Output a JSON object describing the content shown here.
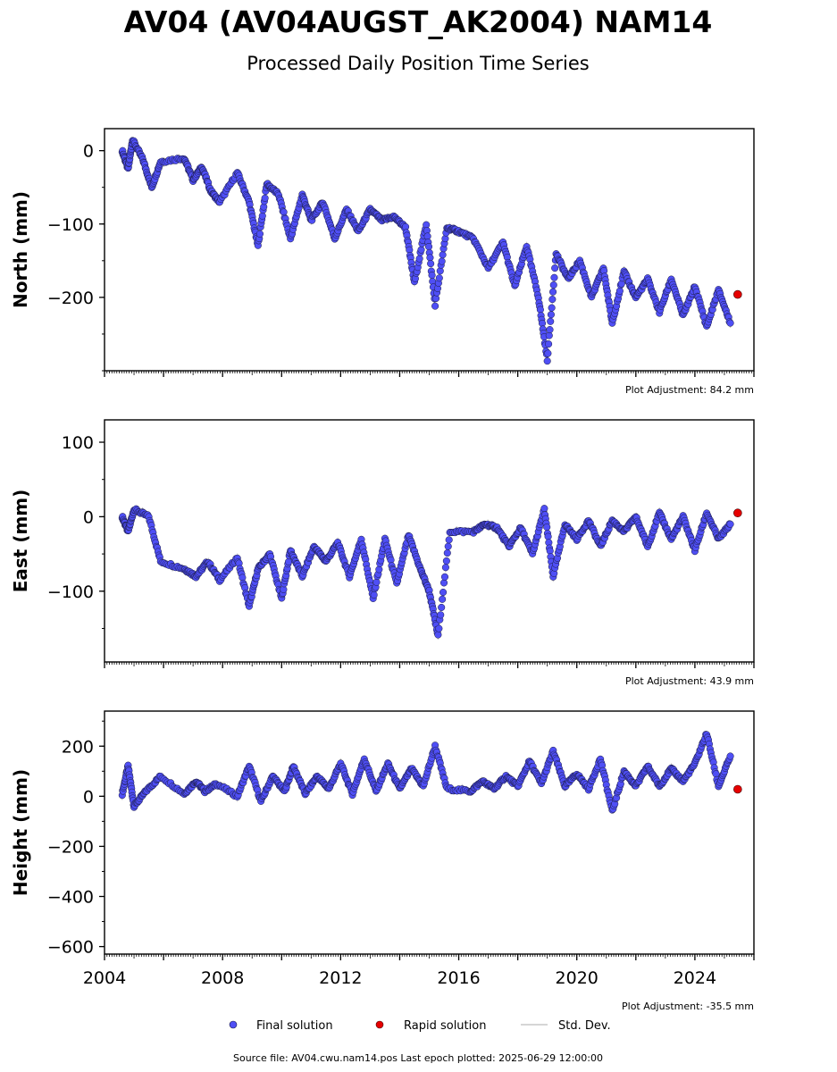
{
  "header": {
    "title": "AV04 (AV04AUGST_AK2004) NAM14",
    "subtitle": "Processed Daily Position Time Series"
  },
  "legend": {
    "final": "Final solution",
    "rapid": "Rapid solution",
    "stddev": "Std. Dev."
  },
  "footer": {
    "source": "Source file: AV04.cwu.nam14.pos  Last epoch plotted: 2025-06-29 12:00:00"
  },
  "colors": {
    "final": "#4f4ff5",
    "rapid": "#e60000",
    "stddev": "#c8c8c8",
    "edge": "#1a1a40"
  },
  "chart_data": [
    {
      "type": "scatter",
      "component": "north",
      "ylabel": "North (mm)",
      "xlim": [
        2004,
        2026
      ],
      "ylim": [
        -300,
        30
      ],
      "yticks": [
        0,
        -100,
        -200
      ],
      "grid": false,
      "adjustment": "Plot Adjustment: 84.2 mm",
      "series": [
        {
          "name": "Final solution",
          "x": [
            2004.6,
            2004.8,
            2004.95,
            2005.3,
            2005.6,
            2005.9,
            2006.7,
            2007.0,
            2007.3,
            2007.6,
            2007.9,
            2008.5,
            2008.9,
            2009.2,
            2009.5,
            2009.9,
            2010.3,
            2010.7,
            2011.0,
            2011.4,
            2011.8,
            2012.2,
            2012.6,
            2013.0,
            2013.4,
            2013.8,
            2014.2,
            2014.5,
            2014.9,
            2015.2,
            2015.6,
            2016.0,
            2016.5,
            2017.0,
            2017.5,
            2017.9,
            2018.3,
            2018.7,
            2019.0,
            2019.3,
            2019.7,
            2020.1,
            2020.5,
            2020.9,
            2021.2,
            2021.6,
            2022.0,
            2022.4,
            2022.8,
            2023.2,
            2023.6,
            2024.0,
            2024.4,
            2024.8,
            2025.2
          ],
          "y": [
            0,
            -25,
            15,
            -12,
            -50,
            -15,
            -10,
            -40,
            -22,
            -55,
            -70,
            -30,
            -70,
            -130,
            -45,
            -60,
            -120,
            -60,
            -95,
            -70,
            -120,
            -80,
            -110,
            -80,
            -95,
            -90,
            -105,
            -180,
            -100,
            -210,
            -105,
            -110,
            -120,
            -160,
            -125,
            -185,
            -130,
            -200,
            -285,
            -140,
            -175,
            -150,
            -200,
            -160,
            -235,
            -165,
            -200,
            -175,
            -220,
            -175,
            -225,
            -185,
            -240,
            -190,
            -235
          ]
        },
        {
          "name": "Rapid solution",
          "x": [
            2025.45
          ],
          "y": [
            -196
          ]
        }
      ]
    },
    {
      "type": "scatter",
      "component": "east",
      "ylabel": "East (mm)",
      "xlim": [
        2004,
        2026
      ],
      "ylim": [
        -195,
        130
      ],
      "yticks": [
        100,
        0,
        -100
      ],
      "grid": false,
      "adjustment": "Plot Adjustment: 43.9 mm",
      "series": [
        {
          "name": "Final solution",
          "x": [
            2004.6,
            2004.8,
            2005.0,
            2005.5,
            2005.9,
            2006.7,
            2007.1,
            2007.5,
            2007.9,
            2008.5,
            2008.9,
            2009.2,
            2009.6,
            2010.0,
            2010.3,
            2010.7,
            2011.1,
            2011.5,
            2011.9,
            2012.3,
            2012.7,
            2013.1,
            2013.5,
            2013.9,
            2014.3,
            2014.7,
            2015.0,
            2015.3,
            2015.7,
            2016.5,
            2016.9,
            2017.3,
            2017.7,
            2018.1,
            2018.5,
            2018.9,
            2019.2,
            2019.6,
            2020.0,
            2020.4,
            2020.8,
            2021.2,
            2021.6,
            2022.0,
            2022.4,
            2022.8,
            2023.2,
            2023.6,
            2024.0,
            2024.4,
            2024.8,
            2025.2
          ],
          "y": [
            0,
            -20,
            10,
            0,
            -60,
            -70,
            -80,
            -60,
            -85,
            -55,
            -120,
            -70,
            -50,
            -110,
            -45,
            -80,
            -40,
            -60,
            -35,
            -80,
            -30,
            -110,
            -30,
            -90,
            -25,
            -70,
            -100,
            -160,
            -20,
            -20,
            -10,
            -15,
            -40,
            -15,
            -50,
            10,
            -80,
            -10,
            -30,
            -5,
            -40,
            -5,
            -20,
            0,
            -40,
            5,
            -30,
            0,
            -45,
            5,
            -30,
            -10
          ]
        },
        {
          "name": "Rapid solution",
          "x": [
            2025.45
          ],
          "y": [
            5
          ]
        }
      ]
    },
    {
      "type": "scatter",
      "component": "height",
      "ylabel": "Height (mm)",
      "xlim": [
        2004,
        2026
      ],
      "ylim": [
        -630,
        340
      ],
      "yticks": [
        200,
        0,
        -200,
        -400,
        -600
      ],
      "xticks": [
        2004,
        2008,
        2012,
        2016,
        2020,
        2024
      ],
      "grid": false,
      "adjustment": "Plot Adjustment: -35.5 mm",
      "series": [
        {
          "name": "Final solution",
          "x": [
            2004.6,
            2004.8,
            2005.0,
            2005.4,
            2005.9,
            2006.7,
            2007.1,
            2007.4,
            2007.8,
            2008.5,
            2008.9,
            2009.3,
            2009.7,
            2010.1,
            2010.4,
            2010.8,
            2011.2,
            2011.6,
            2012.0,
            2012.4,
            2012.8,
            2013.2,
            2013.6,
            2014.0,
            2014.4,
            2014.8,
            2015.2,
            2015.6,
            2016.4,
            2016.8,
            2017.2,
            2017.6,
            2018.0,
            2018.4,
            2018.8,
            2019.2,
            2019.6,
            2020.0,
            2020.4,
            2020.8,
            2021.2,
            2021.6,
            2022.0,
            2022.4,
            2022.8,
            2023.2,
            2023.6,
            2024.0,
            2024.4,
            2024.8,
            2025.2
          ],
          "y": [
            10,
            120,
            -40,
            20,
            80,
            10,
            60,
            20,
            50,
            0,
            120,
            -20,
            80,
            20,
            120,
            10,
            80,
            30,
            130,
            10,
            150,
            20,
            130,
            30,
            110,
            40,
            200,
            30,
            20,
            60,
            30,
            80,
            40,
            140,
            50,
            180,
            40,
            90,
            30,
            150,
            -60,
            100,
            40,
            120,
            40,
            110,
            60,
            130,
            250,
            40,
            160
          ]
        },
        {
          "name": "Rapid solution",
          "x": [
            2025.45
          ],
          "y": [
            28
          ]
        }
      ]
    }
  ]
}
